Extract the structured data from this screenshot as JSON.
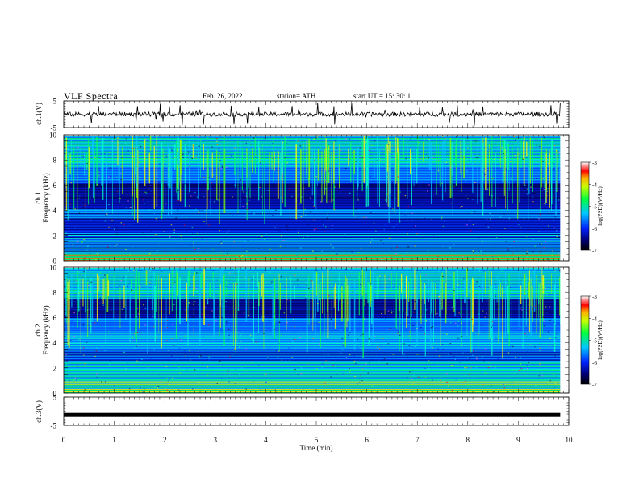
{
  "header": {
    "title": "VLF  Spectra",
    "date": "Feb. 26, 2022",
    "station": "station= ATH",
    "start": "start  UT  =    15: 30: 1"
  },
  "chart_data": [
    {
      "type": "line",
      "panel": "ch1-waveform",
      "ylabel": "ch.1(V)",
      "ylim": [
        -5,
        5
      ],
      "yticks": [
        "5",
        "-5"
      ],
      "xlim": [
        0,
        10
      ],
      "data_end_min": 9.83,
      "mean_value": 0,
      "color": "#000000"
    },
    {
      "type": "heatmap",
      "panel": "ch1-spectrogram",
      "ylabel_channel": "ch.1",
      "ylabel": "Frequency  (kHz)",
      "ylim": [
        0,
        10
      ],
      "yticks": [
        "0",
        "2",
        "4",
        "6",
        "8",
        "10"
      ],
      "xlim": [
        0,
        10
      ],
      "colorbar": {
        "label": "log(PSD)(V²/Hz)",
        "range": [
          -7,
          -3
        ],
        "ticks": [
          "-3",
          "-4",
          "-5",
          "-6",
          "-7"
        ]
      }
    },
    {
      "type": "heatmap",
      "panel": "ch2-spectrogram",
      "ylabel_channel": "ch.2",
      "ylabel": "Frequency  (kHz)",
      "ylim": [
        0,
        10
      ],
      "yticks": [
        "0",
        "2",
        "4",
        "6",
        "8",
        "10"
      ],
      "xlim": [
        0,
        10
      ],
      "colorbar": {
        "label": "log(PSD)(V²/Hz)",
        "range": [
          -7,
          -3
        ],
        "ticks": [
          "-3",
          "-4",
          "-5",
          "-6",
          "-7"
        ]
      }
    },
    {
      "type": "line",
      "panel": "ch3-waveform",
      "ylabel": "ch.3(V)",
      "ylim": [
        -5,
        5
      ],
      "yticks": [
        "5",
        "-5"
      ],
      "xlabel": "Time  (min)",
      "xlim": [
        0,
        10
      ],
      "xticks": [
        "0",
        "1",
        "2",
        "3",
        "4",
        "5",
        "6",
        "7",
        "8",
        "9",
        "10"
      ],
      "constant_value": -1.2,
      "data_end_min": 9.83,
      "color": "#000000"
    }
  ]
}
